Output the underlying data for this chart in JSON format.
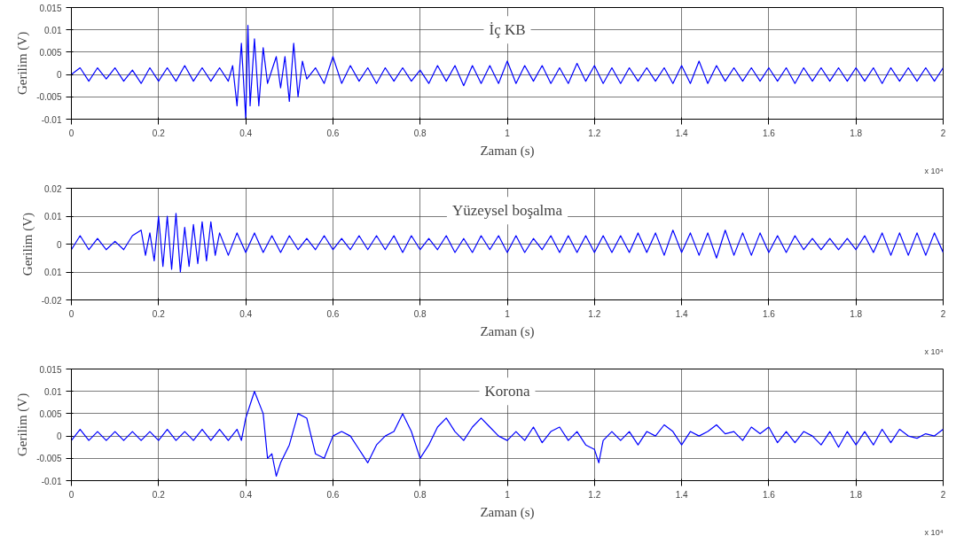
{
  "chart_data": [
    {
      "type": "line",
      "title": "İç KB",
      "xlabel": "Zaman (s)",
      "ylabel": "Gerilim (V)",
      "annotations": [
        "x 10⁴"
      ],
      "grid": true,
      "xlim": [
        0,
        2
      ],
      "xticks": [
        0,
        0.2,
        0.4,
        0.6,
        0.8,
        1,
        1.2,
        1.4,
        1.6,
        1.8,
        2
      ],
      "ylim": [
        -0.01,
        0.015
      ],
      "yticks": [
        -0.01,
        -0.005,
        0,
        0.005,
        0.01,
        0.015
      ],
      "series": [
        {
          "color": "#0000ff",
          "x": [
            0,
            0.02,
            0.04,
            0.06,
            0.08,
            0.1,
            0.12,
            0.14,
            0.16,
            0.18,
            0.2,
            0.22,
            0.24,
            0.26,
            0.28,
            0.3,
            0.32,
            0.34,
            0.36,
            0.37,
            0.38,
            0.39,
            0.4,
            0.405,
            0.41,
            0.42,
            0.43,
            0.44,
            0.45,
            0.46,
            0.47,
            0.48,
            0.49,
            0.5,
            0.51,
            0.52,
            0.53,
            0.54,
            0.56,
            0.58,
            0.6,
            0.62,
            0.64,
            0.66,
            0.68,
            0.7,
            0.72,
            0.74,
            0.76,
            0.78,
            0.8,
            0.82,
            0.84,
            0.86,
            0.88,
            0.9,
            0.92,
            0.94,
            0.96,
            0.98,
            1,
            1.02,
            1.04,
            1.06,
            1.08,
            1.1,
            1.12,
            1.14,
            1.16,
            1.18,
            1.2,
            1.22,
            1.24,
            1.26,
            1.28,
            1.3,
            1.32,
            1.34,
            1.36,
            1.38,
            1.4,
            1.42,
            1.44,
            1.46,
            1.48,
            1.5,
            1.52,
            1.54,
            1.56,
            1.58,
            1.6,
            1.62,
            1.64,
            1.66,
            1.68,
            1.7,
            1.72,
            1.74,
            1.76,
            1.78,
            1.8,
            1.82,
            1.84,
            1.86,
            1.88,
            1.9,
            1.92,
            1.94,
            1.96,
            1.98,
            2
          ],
          "values": [
            0,
            0.0015,
            -0.0015,
            0.0015,
            -0.001,
            0.0015,
            -0.0015,
            0.001,
            -0.002,
            0.0015,
            -0.0015,
            0.0015,
            -0.0015,
            0.002,
            -0.0015,
            0.0015,
            -0.0015,
            0.0015,
            -0.0015,
            0.002,
            -0.007,
            0.007,
            -0.01,
            0.011,
            -0.007,
            0.008,
            -0.007,
            0.006,
            -0.002,
            0.001,
            0.004,
            -0.003,
            0.004,
            -0.006,
            0.007,
            -0.005,
            0.003,
            -0.001,
            0.0015,
            -0.002,
            0.004,
            -0.002,
            0.002,
            -0.0015,
            0.0015,
            -0.002,
            0.0015,
            -0.0015,
            0.0015,
            -0.0015,
            0.001,
            -0.002,
            0.002,
            -0.0015,
            0.002,
            -0.0025,
            0.002,
            -0.002,
            0.002,
            -0.002,
            0.003,
            -0.002,
            0.002,
            -0.0015,
            0.002,
            -0.002,
            0.0015,
            -0.002,
            0.0025,
            -0.0015,
            0.002,
            -0.002,
            0.0015,
            -0.002,
            0.0015,
            -0.0015,
            0.0015,
            -0.0015,
            0.0015,
            -0.002,
            0.002,
            -0.002,
            0.003,
            -0.002,
            0.002,
            -0.0015,
            0.0015,
            -0.0015,
            0.0015,
            -0.0015,
            0.0015,
            -0.0015,
            0.0015,
            -0.002,
            0.0015,
            -0.0015,
            0.0015,
            -0.0015,
            0.0015,
            -0.0015,
            0.0015,
            -0.0015,
            0.0015,
            -0.002,
            0.0015,
            -0.0015,
            0.0015,
            -0.0015,
            0.0015,
            -0.0015,
            0.0015
          ]
        }
      ]
    },
    {
      "type": "line",
      "title": "Yüzeysel boşalma",
      "xlabel": "Zaman (s)",
      "ylabel": "Gerilim (V)",
      "annotations": [
        "x 10⁴"
      ],
      "grid": true,
      "xlim": [
        0,
        2
      ],
      "xticks": [
        0,
        0.2,
        0.4,
        0.6,
        0.8,
        1,
        1.2,
        1.4,
        1.6,
        1.8,
        2
      ],
      "ylim": [
        -0.02,
        0.02
      ],
      "yticks": [
        -0.02,
        {
          "value": -0.01,
          "label": "0.01"
        },
        0,
        0.01,
        0.02
      ],
      "series": [
        {
          "color": "#0000ff",
          "x": [
            0,
            0.02,
            0.04,
            0.06,
            0.08,
            0.1,
            0.12,
            0.14,
            0.16,
            0.17,
            0.18,
            0.19,
            0.2,
            0.21,
            0.22,
            0.23,
            0.24,
            0.25,
            0.26,
            0.27,
            0.28,
            0.29,
            0.3,
            0.31,
            0.32,
            0.33,
            0.34,
            0.36,
            0.38,
            0.4,
            0.42,
            0.44,
            0.46,
            0.48,
            0.5,
            0.52,
            0.54,
            0.56,
            0.58,
            0.6,
            0.62,
            0.64,
            0.66,
            0.68,
            0.7,
            0.72,
            0.74,
            0.76,
            0.78,
            0.8,
            0.82,
            0.84,
            0.86,
            0.88,
            0.9,
            0.92,
            0.94,
            0.96,
            0.98,
            1,
            1.02,
            1.04,
            1.06,
            1.08,
            1.1,
            1.12,
            1.14,
            1.16,
            1.18,
            1.2,
            1.22,
            1.24,
            1.26,
            1.28,
            1.3,
            1.32,
            1.34,
            1.36,
            1.38,
            1.4,
            1.42,
            1.44,
            1.46,
            1.48,
            1.5,
            1.52,
            1.54,
            1.56,
            1.58,
            1.6,
            1.62,
            1.64,
            1.66,
            1.68,
            1.7,
            1.72,
            1.74,
            1.76,
            1.78,
            1.8,
            1.82,
            1.84,
            1.86,
            1.88,
            1.9,
            1.92,
            1.94,
            1.96,
            1.98,
            2
          ],
          "values": [
            -0.002,
            0.003,
            -0.002,
            0.002,
            -0.002,
            0.001,
            -0.002,
            0.003,
            0.005,
            -0.004,
            0.004,
            -0.006,
            0.01,
            -0.008,
            0.01,
            -0.009,
            0.011,
            -0.01,
            0.006,
            -0.008,
            0.007,
            -0.007,
            0.008,
            -0.006,
            0.008,
            -0.004,
            0.004,
            -0.004,
            0.004,
            -0.003,
            0.004,
            -0.003,
            0.003,
            -0.003,
            0.003,
            -0.002,
            0.002,
            -0.002,
            0.003,
            -0.002,
            0.002,
            -0.002,
            0.003,
            -0.002,
            0.003,
            -0.002,
            0.003,
            -0.003,
            0.003,
            -0.002,
            0.002,
            -0.002,
            0.003,
            -0.003,
            0.002,
            -0.003,
            0.003,
            -0.002,
            0.003,
            -0.003,
            0.003,
            -0.003,
            0.002,
            -0.002,
            0.003,
            -0.003,
            0.003,
            -0.003,
            0.003,
            -0.003,
            0.003,
            -0.003,
            0.003,
            -0.003,
            0.004,
            -0.003,
            0.004,
            -0.004,
            0.005,
            -0.003,
            0.004,
            -0.004,
            0.004,
            -0.005,
            0.005,
            -0.004,
            0.004,
            -0.004,
            0.004,
            -0.003,
            0.003,
            -0.003,
            0.003,
            -0.002,
            0.002,
            -0.002,
            0.002,
            -0.002,
            0.002,
            -0.002,
            0.003,
            -0.003,
            0.004,
            -0.004,
            0.004,
            -0.004,
            0.004,
            -0.004,
            0.004,
            -0.003
          ]
        }
      ]
    },
    {
      "type": "line",
      "title": "Korona",
      "xlabel": "Zaman (s)",
      "ylabel": "Gerilim (V)",
      "annotations": [
        "x 10⁴"
      ],
      "grid": true,
      "xlim": [
        0,
        2
      ],
      "xticks": [
        0,
        0.2,
        0.4,
        0.6,
        0.8,
        1,
        1.2,
        1.4,
        1.6,
        1.8,
        2
      ],
      "ylim": [
        -0.01,
        0.015
      ],
      "yticks": [
        -0.01,
        -0.005,
        0,
        0.005,
        0.01,
        0.015
      ],
      "series": [
        {
          "color": "#0000ff",
          "x": [
            0,
            0.02,
            0.04,
            0.06,
            0.08,
            0.1,
            0.12,
            0.14,
            0.16,
            0.18,
            0.2,
            0.22,
            0.24,
            0.26,
            0.28,
            0.3,
            0.32,
            0.34,
            0.36,
            0.38,
            0.39,
            0.4,
            0.42,
            0.44,
            0.45,
            0.46,
            0.47,
            0.48,
            0.5,
            0.52,
            0.54,
            0.56,
            0.58,
            0.6,
            0.62,
            0.64,
            0.66,
            0.68,
            0.7,
            0.72,
            0.74,
            0.76,
            0.78,
            0.8,
            0.82,
            0.84,
            0.86,
            0.88,
            0.9,
            0.92,
            0.94,
            0.96,
            0.98,
            1,
            1.02,
            1.04,
            1.06,
            1.08,
            1.1,
            1.12,
            1.14,
            1.16,
            1.18,
            1.2,
            1.21,
            1.22,
            1.24,
            1.26,
            1.28,
            1.3,
            1.32,
            1.34,
            1.36,
            1.38,
            1.4,
            1.42,
            1.44,
            1.46,
            1.48,
            1.5,
            1.52,
            1.54,
            1.56,
            1.58,
            1.6,
            1.62,
            1.64,
            1.66,
            1.68,
            1.7,
            1.72,
            1.74,
            1.76,
            1.78,
            1.8,
            1.82,
            1.84,
            1.86,
            1.88,
            1.9,
            1.92,
            1.94,
            1.96,
            1.98,
            2
          ],
          "values": [
            -0.001,
            0.0015,
            -0.001,
            0.001,
            -0.001,
            0.001,
            -0.001,
            0.001,
            -0.001,
            0.001,
            -0.001,
            0.0015,
            -0.001,
            0.001,
            -0.001,
            0.0015,
            -0.001,
            0.0015,
            -0.001,
            0.0015,
            -0.001,
            0.004,
            0.01,
            0.005,
            -0.005,
            -0.004,
            -0.009,
            -0.006,
            -0.002,
            0.005,
            0.004,
            -0.004,
            -0.005,
            0,
            0.001,
            0,
            -0.003,
            -0.006,
            -0.002,
            0,
            0.001,
            0.005,
            0.001,
            -0.005,
            -0.002,
            0.002,
            0.004,
            0.001,
            -0.001,
            0.002,
            0.004,
            0.002,
            0,
            -0.001,
            0.001,
            -0.001,
            0.002,
            -0.0015,
            0.001,
            0.002,
            -0.001,
            0.001,
            -0.002,
            -0.003,
            -0.006,
            -0.001,
            0.001,
            -0.001,
            0.001,
            -0.002,
            0.001,
            0,
            0.0025,
            0.001,
            -0.002,
            0.001,
            0,
            0.001,
            0.0025,
            0.0005,
            0.001,
            -0.001,
            0.002,
            0.0005,
            0.002,
            -0.0015,
            0.001,
            -0.0015,
            0.001,
            0,
            -0.002,
            0.001,
            -0.0025,
            0.001,
            -0.002,
            0.001,
            -0.002,
            0.0015,
            -0.0015,
            0.0015,
            0,
            -0.0005,
            0.0005,
            0,
            0.0015
          ]
        }
      ]
    }
  ]
}
